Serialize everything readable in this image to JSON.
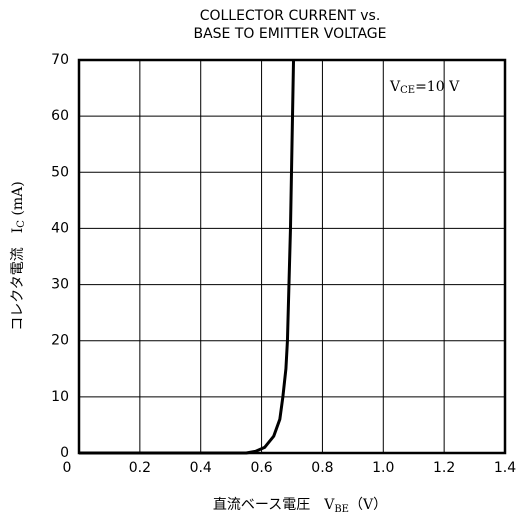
{
  "chart_data": {
    "type": "line",
    "title": [
      "COLLECTOR CURRENT vs.",
      "BASE TO EMITTER VOLTAGE"
    ],
    "y_label": [
      "コレクタ電流　I",
      "C",
      " (mA)"
    ],
    "x_label": [
      "直流ベース電圧　V",
      "BE",
      "（V）"
    ],
    "annotation": [
      "V",
      "CE",
      "=10  V"
    ],
    "series": [
      {
        "color": "#000000",
        "x": [
          0,
          0.55,
          0.58,
          0.61,
          0.64,
          0.66,
          0.67,
          0.68,
          0.685,
          0.69,
          0.695,
          0.7,
          0.705
        ],
        "values": [
          0,
          0,
          0.3,
          1,
          3,
          6,
          10,
          15,
          20,
          30,
          40,
          55,
          70
        ]
      }
    ],
    "xlim": [
      0,
      1.4
    ],
    "xticks": [
      0,
      0.2,
      0.4,
      0.6,
      0.8,
      {
        "value": 1,
        "label": "1.0"
      },
      1.2,
      1.4
    ],
    "ylim": [
      0,
      70
    ],
    "yticks": [
      0,
      10,
      20,
      30,
      40,
      50,
      60,
      70
    ],
    "grid": true
  }
}
